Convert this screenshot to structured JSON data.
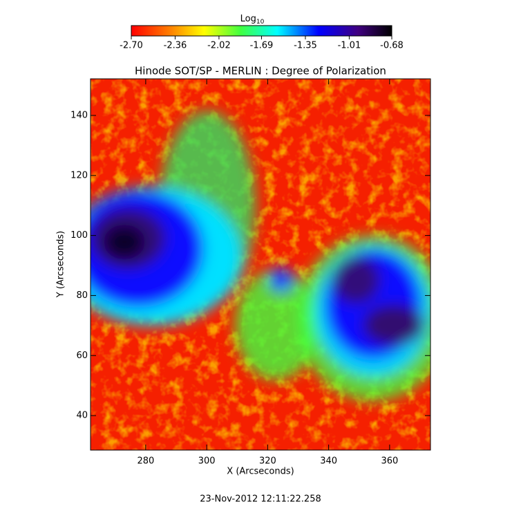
{
  "chart_data": {
    "type": "image",
    "title": "Hinode SOT/SP - MERLIN : Degree of Polarization",
    "x_label": "X (Arcseconds)",
    "y_label": "Y (Arcseconds)",
    "footer": "23-Nov-2012 12:11:22.258",
    "colorbar_label": "Log",
    "colorbar_label_sub": "10",
    "clim": [
      -2.7,
      -0.68
    ],
    "cticks": [
      {
        "value": -2.7,
        "label": "-2.70"
      },
      {
        "value": -2.36,
        "label": "-2.36"
      },
      {
        "value": -2.02,
        "label": "-2.02"
      },
      {
        "value": -1.69,
        "label": "-1.69"
      },
      {
        "value": -1.35,
        "label": "-1.35"
      },
      {
        "value": -1.01,
        "label": "-1.01"
      },
      {
        "value": -0.68,
        "label": "-0.68"
      }
    ],
    "xlim": [
      261.9,
      373.4
    ],
    "xticks": [
      280,
      300,
      320,
      340,
      360
    ],
    "ylim": [
      28.5,
      152.2
    ],
    "yticks": [
      40,
      60,
      80,
      100,
      120,
      140
    ]
  }
}
